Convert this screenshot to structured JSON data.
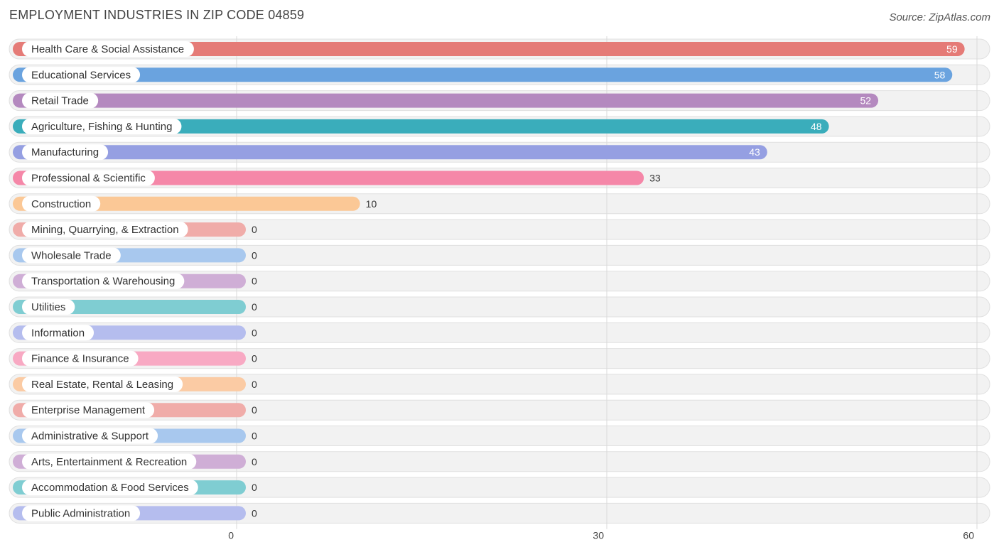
{
  "header": {
    "title": "EMPLOYMENT INDUSTRIES IN ZIP CODE 04859",
    "source": "Source: ZipAtlas.com"
  },
  "chart_data": {
    "type": "bar",
    "orientation": "horizontal",
    "title": "EMPLOYMENT INDUSTRIES IN ZIP CODE 04859",
    "categories": [
      "Health Care & Social Assistance",
      "Educational Services",
      "Retail Trade",
      "Agriculture, Fishing & Hunting",
      "Manufacturing",
      "Professional & Scientific",
      "Construction",
      "Mining, Quarrying, & Extraction",
      "Wholesale Trade",
      "Transportation & Warehousing",
      "Utilities",
      "Information",
      "Finance & Insurance",
      "Real Estate, Rental & Leasing",
      "Enterprise Management",
      "Administrative & Support",
      "Arts, Entertainment & Recreation",
      "Accommodation & Food Services",
      "Public Administration"
    ],
    "values": [
      59,
      58,
      52,
      48,
      43,
      33,
      10,
      0,
      0,
      0,
      0,
      0,
      0,
      0,
      0,
      0,
      0,
      0,
      0
    ],
    "colors": [
      "#e57b77",
      "#6aa3df",
      "#b489bf",
      "#3aadbb",
      "#959fe2",
      "#f587a8",
      "#fbc896",
      "#f0aca9",
      "#a8c8ee",
      "#cfaed6",
      "#7fcdd2",
      "#b5bdee",
      "#f8a9c3",
      "#fbcba4",
      "#f0aca9",
      "#a8c8ee",
      "#cfaed6",
      "#7fcdd2",
      "#b5bdee"
    ],
    "xlim": [
      0,
      60
    ],
    "x_ticks": [
      0,
      30,
      60
    ],
    "grid": true,
    "value_labels_inside_threshold": 40
  }
}
